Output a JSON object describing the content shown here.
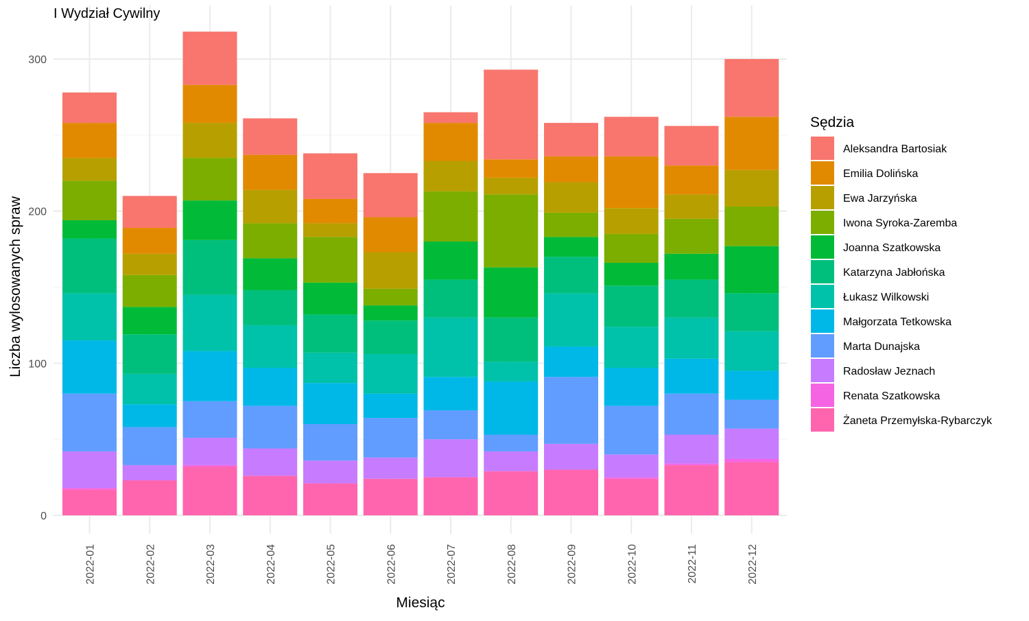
{
  "chart_data": {
    "type": "bar",
    "stacked": true,
    "title": "I Wydział Cywilny",
    "xlabel": "Miesiąc",
    "ylabel": "Liczba wylosowanych spraw",
    "ylim": [
      0,
      330
    ],
    "yticks": [
      0,
      100,
      200,
      300
    ],
    "grid": true,
    "legend": {
      "title": "Sędzia",
      "placement": "right"
    },
    "categories": [
      "2022-01",
      "2022-02",
      "2022-03",
      "2022-04",
      "2022-05",
      "2022-06",
      "2022-07",
      "2022-08",
      "2022-09",
      "2022-10",
      "2022-11",
      "2022-12"
    ],
    "series": [
      {
        "name": "Żaneta Przemyłska-Rybarczyk",
        "color": "#FF65AE",
        "values": [
          17,
          23,
          32,
          26,
          21,
          24,
          25,
          29,
          30,
          24,
          33,
          35
        ]
      },
      {
        "name": "Renata Szatkowska",
        "color": "#F564E3",
        "values": [
          1,
          0,
          1,
          0,
          0,
          0,
          0,
          0,
          0,
          1,
          1,
          2
        ]
      },
      {
        "name": "Radosław Jeznach",
        "color": "#C77CFF",
        "values": [
          24,
          10,
          18,
          18,
          15,
          14,
          25,
          13,
          17,
          15,
          19,
          20
        ]
      },
      {
        "name": "Marta Dunajska",
        "color": "#619CFF",
        "values": [
          38,
          25,
          24,
          28,
          24,
          26,
          19,
          11,
          44,
          32,
          27,
          19
        ]
      },
      {
        "name": "Małgorzata Tetkowska",
        "color": "#00B8E7",
        "values": [
          35,
          15,
          33,
          25,
          27,
          16,
          22,
          35,
          20,
          25,
          23,
          19
        ]
      },
      {
        "name": "Łukasz Wilkowski",
        "color": "#00C1A9",
        "values": [
          31,
          20,
          37,
          28,
          20,
          26,
          39,
          13,
          35,
          27,
          27,
          26
        ]
      },
      {
        "name": "Katarzyna Jabłońska",
        "color": "#00BF7D",
        "values": [
          36,
          26,
          36,
          23,
          25,
          22,
          25,
          29,
          24,
          27,
          25,
          25
        ]
      },
      {
        "name": "Joanna Szatkowska",
        "color": "#00BA38",
        "values": [
          12,
          18,
          26,
          21,
          21,
          10,
          25,
          33,
          13,
          15,
          17,
          31
        ]
      },
      {
        "name": "Iwona Syroka-Zaremba",
        "color": "#7CAE00",
        "values": [
          26,
          21,
          28,
          23,
          30,
          11,
          33,
          48,
          16,
          19,
          23,
          26
        ]
      },
      {
        "name": "Ewa Jarzyńska",
        "color": "#B79F00",
        "values": [
          15,
          14,
          23,
          22,
          9,
          24,
          20,
          11,
          20,
          17,
          16,
          24
        ]
      },
      {
        "name": "Emilia Dolińska",
        "color": "#E18A00",
        "values": [
          23,
          17,
          25,
          23,
          16,
          23,
          25,
          12,
          17,
          34,
          19,
          35
        ]
      },
      {
        "name": "Aleksandra Bartosiak",
        "color": "#F8766D",
        "values": [
          20,
          21,
          35,
          24,
          30,
          29,
          7,
          59,
          22,
          26,
          26,
          38
        ]
      }
    ]
  }
}
